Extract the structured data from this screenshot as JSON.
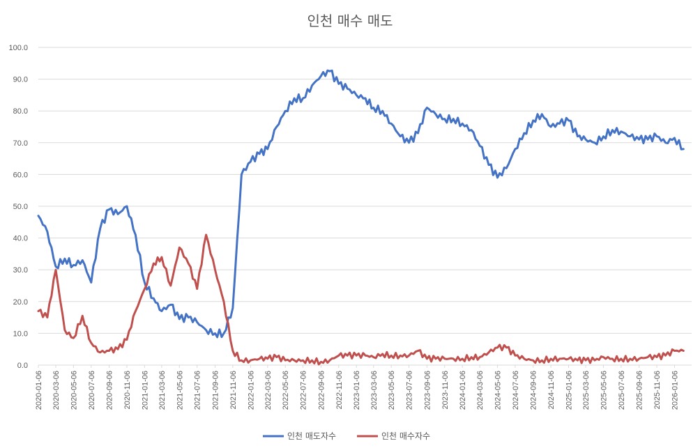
{
  "chart_data": {
    "type": "line",
    "title": "인천 매수 매도",
    "xlabel": "",
    "ylabel": "",
    "ylim": [
      0,
      100
    ],
    "yticks": [
      "0.0",
      "10.0",
      "20.0",
      "30.0",
      "40.0",
      "50.0",
      "60.0",
      "70.0",
      "80.0",
      "90.0",
      "100.0"
    ],
    "grid": true,
    "legend_position": "bottom",
    "x_tick_labels": [
      "2020-01-06",
      "2020-03-06",
      "2020-05-06",
      "2020-07-06",
      "2020-09-06",
      "2020-11-06",
      "2021-01-06",
      "2021-03-06",
      "2021-05-06",
      "2021-07-06",
      "2021-09-06",
      "2021-11-06",
      "2022-01-06",
      "2022-03-06",
      "2022-05-06",
      "2022-07-06",
      "2022-09-06",
      "2022-11-06",
      "2023-01-06",
      "2023-03-06",
      "2023-05-06",
      "2023-07-06",
      "2023-09-06",
      "2023-11-06",
      "2024-01-06",
      "2024-03-06",
      "2024-05-06",
      "2024-07-06",
      "2024-09-06",
      "2024-11-06",
      "2025-01-06",
      "2025-03-06",
      "2025-05-06",
      "2025-07-06",
      "2025-09-06",
      "2025-11-06",
      "2026-01-06"
    ],
    "x": [
      "2020-01-06",
      "2020-02-06",
      "2020-03-06",
      "2020-04-06",
      "2020-05-06",
      "2020-06-06",
      "2020-07-06",
      "2020-08-06",
      "2020-09-06",
      "2020-10-06",
      "2020-11-06",
      "2020-12-06",
      "2021-01-06",
      "2021-02-06",
      "2021-03-06",
      "2021-04-06",
      "2021-05-06",
      "2021-06-06",
      "2021-07-06",
      "2021-08-06",
      "2021-09-06",
      "2021-10-06",
      "2021-11-06",
      "2021-12-06",
      "2022-01-06",
      "2022-02-06",
      "2022-03-06",
      "2022-04-06",
      "2022-05-06",
      "2022-06-06",
      "2022-07-06",
      "2022-08-06",
      "2022-09-06",
      "2022-10-06",
      "2022-11-06",
      "2022-12-06",
      "2023-01-06",
      "2023-02-06",
      "2023-03-06",
      "2023-04-06",
      "2023-05-06",
      "2023-06-06",
      "2023-07-06",
      "2023-08-06",
      "2023-09-06",
      "2023-10-06",
      "2023-11-06",
      "2023-12-06",
      "2024-01-06",
      "2024-02-06",
      "2024-03-06",
      "2024-04-06",
      "2024-05-06",
      "2024-06-06",
      "2024-07-06",
      "2024-08-06",
      "2024-09-06",
      "2024-10-06",
      "2024-11-06",
      "2024-12-06",
      "2025-01-06",
      "2025-02-06",
      "2025-03-06",
      "2025-04-06",
      "2025-05-06",
      "2025-06-06",
      "2025-07-06",
      "2025-08-06",
      "2025-09-06",
      "2025-10-06",
      "2025-11-06",
      "2025-12-06",
      "2026-01-06",
      "2026-02-06"
    ],
    "series": [
      {
        "name": "인천 매도자수",
        "color": "#4472c4",
        "values": [
          47.0,
          42.0,
          31.0,
          33.5,
          31.5,
          33.0,
          26.0,
          43.0,
          49.0,
          47.5,
          50.0,
          41.0,
          26.0,
          21.0,
          17.0,
          19.0,
          14.5,
          15.0,
          13.5,
          11.0,
          10.0,
          10.0,
          18.0,
          60.0,
          64.0,
          66.5,
          68.0,
          75.0,
          80.0,
          84.0,
          84.0,
          88.0,
          91.0,
          92.5,
          88.5,
          87.0,
          85.0,
          84.0,
          81.0,
          80.0,
          76.0,
          72.0,
          70.0,
          73.0,
          81.0,
          79.0,
          77.5,
          77.5,
          76.0,
          74.0,
          69.0,
          63.0,
          59.0,
          62.0,
          68.0,
          73.0,
          77.0,
          79.0,
          75.0,
          76.0,
          77.0,
          72.0,
          71.0,
          70.0,
          72.0,
          74.0,
          73.5,
          72.0,
          71.0,
          71.0,
          72.0,
          70.0,
          71.5,
          68.0
        ]
      },
      {
        "name": "인천 매수자수",
        "color": "#c0504d",
        "values": [
          17.0,
          15.0,
          30.0,
          11.0,
          8.5,
          15.5,
          7.0,
          4.0,
          4.5,
          5.0,
          8.0,
          17.0,
          24.0,
          32.0,
          34.0,
          25.0,
          37.0,
          32.0,
          24.0,
          41.0,
          30.0,
          20.0,
          4.5,
          1.5,
          1.5,
          2.0,
          2.0,
          2.5,
          1.5,
          1.5,
          1.5,
          1.5,
          1.0,
          1.5,
          3.0,
          3.0,
          3.0,
          3.0,
          2.5,
          3.5,
          3.0,
          3.0,
          3.0,
          4.5,
          2.0,
          2.0,
          2.0,
          2.0,
          2.0,
          2.5,
          2.5,
          4.0,
          5.5,
          5.5,
          3.0,
          2.0,
          1.5,
          1.5,
          2.0,
          2.0,
          2.0,
          1.5,
          1.5,
          1.5,
          2.5,
          2.0,
          2.0,
          2.0,
          2.0,
          2.5,
          2.5,
          3.0,
          4.5,
          4.5
        ]
      }
    ]
  }
}
